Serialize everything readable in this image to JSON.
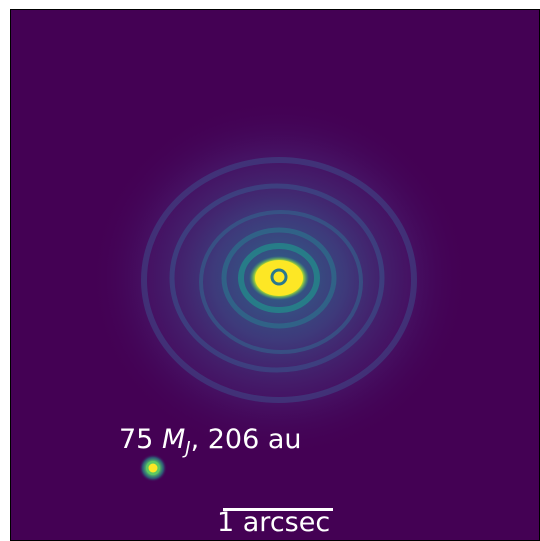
{
  "image": {
    "colormap": "viridis",
    "background_color": "#440154",
    "frame_color": "#000000"
  },
  "companion": {
    "mass_value": "75",
    "mass_symbol": "M",
    "mass_subscript": "J",
    "separation": ", 206 au"
  },
  "scalebar": {
    "label": "1 arcsec"
  }
}
